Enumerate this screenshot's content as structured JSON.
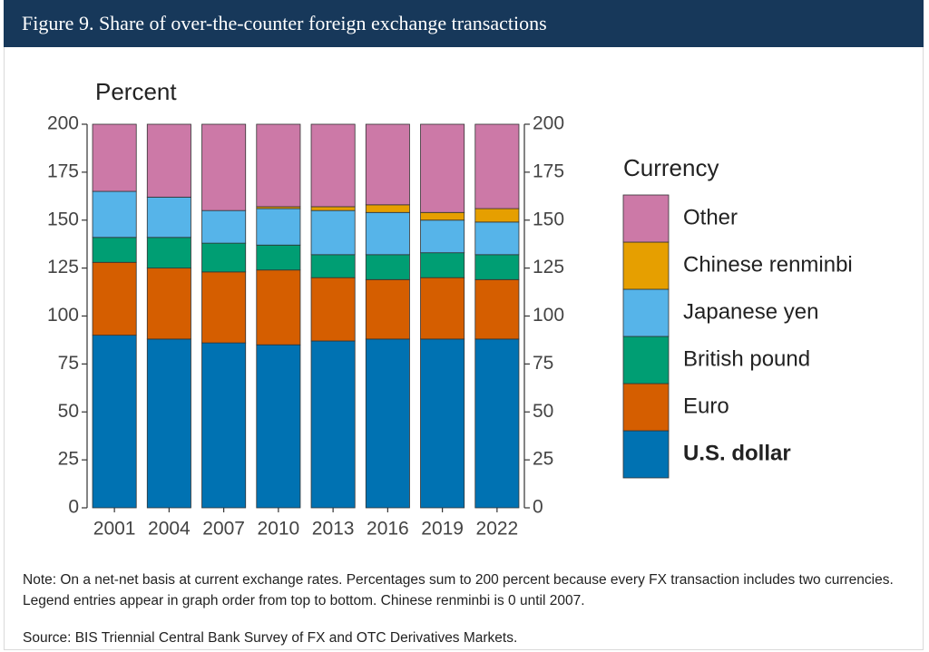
{
  "chart_data": {
    "type": "stacked_bar",
    "title": "Figure 9. Share of over-the-counter foreign exchange transactions",
    "y_axis_label": "Percent",
    "legend_title": "Currency",
    "categories": [
      "2001",
      "2004",
      "2007",
      "2010",
      "2013",
      "2016",
      "2019",
      "2022"
    ],
    "series": [
      {
        "name": "U.S. dollar",
        "color": "#0072b2",
        "values": [
          90,
          88,
          86,
          85,
          87,
          88,
          88,
          88
        ]
      },
      {
        "name": "Euro",
        "color": "#d55e00",
        "values": [
          38,
          37,
          37,
          39,
          33,
          31,
          32,
          31
        ]
      },
      {
        "name": "British pound",
        "color": "#009e73",
        "values": [
          13,
          16,
          15,
          13,
          12,
          13,
          13,
          13
        ]
      },
      {
        "name": "Japanese yen",
        "color": "#56b4e9",
        "values": [
          24,
          21,
          17,
          19,
          23,
          22,
          17,
          17
        ]
      },
      {
        "name": "Chinese renminbi",
        "color": "#e69f00",
        "values": [
          0,
          0,
          0,
          1,
          2,
          4,
          4,
          7
        ]
      },
      {
        "name": "Other",
        "color": "#cc79a7",
        "values": [
          35,
          38,
          45,
          43,
          43,
          42,
          46,
          44
        ]
      }
    ],
    "ylim": [
      0,
      200
    ],
    "yticks": [
      0,
      25,
      50,
      75,
      100,
      125,
      150,
      175,
      200
    ],
    "y2lim": [
      0,
      200
    ],
    "y2ticks": [
      0,
      25,
      50,
      75,
      100,
      125,
      150,
      175,
      200
    ],
    "legend": "right",
    "note": "Note: On a net-net basis at current exchange rates. Percentages sum to 200 percent because every FX transaction includes two currencies. Legend entries appear in graph order from top to bottom. Chinese renminbi is 0 until 2007.",
    "source": "Source: BIS Triennial Central Bank Survey of FX and OTC Derivatives Markets."
  }
}
